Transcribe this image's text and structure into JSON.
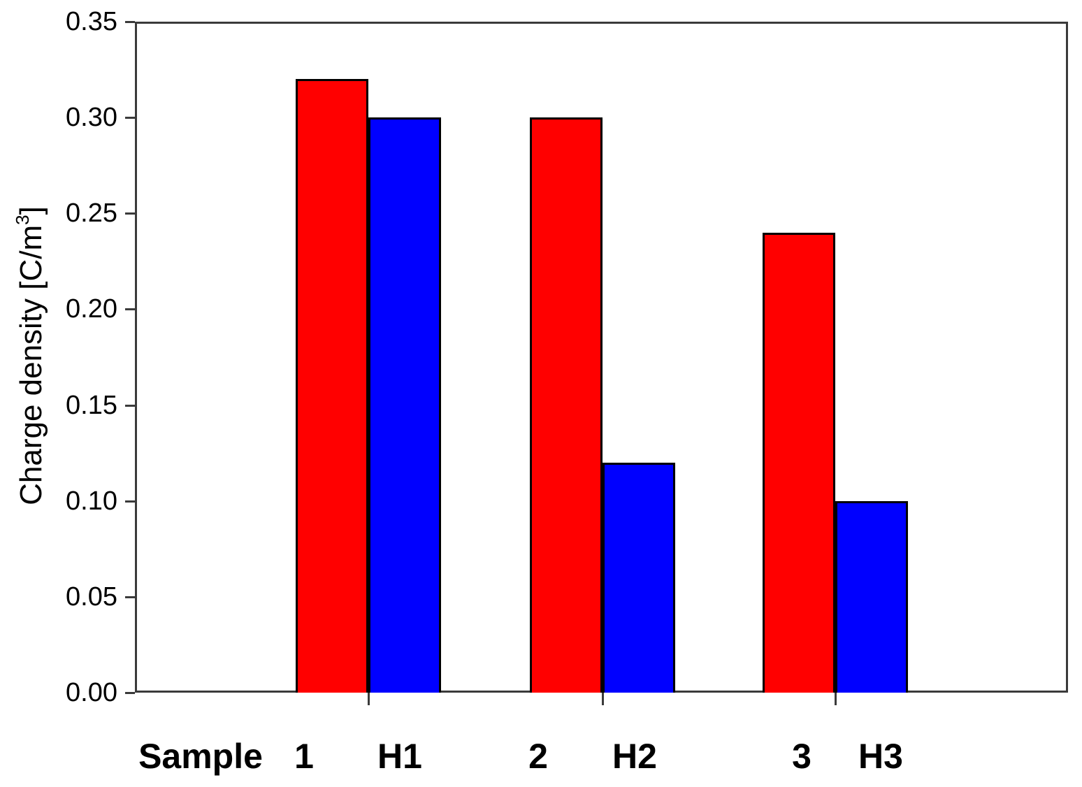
{
  "chart_data": {
    "type": "bar",
    "title": "",
    "ylabel": "Charge density [C/m³]",
    "ylabel_parts": {
      "base": "Charge density [C/m",
      "sup": "3",
      "close": "]"
    },
    "x_prefix_label": "Sample",
    "categories": [
      "1",
      "H1",
      "2",
      "H2",
      "3",
      "H3"
    ],
    "values": [
      0.32,
      0.3,
      0.3,
      0.12,
      0.24,
      0.1
    ],
    "bar_colors": [
      "#ff0000",
      "#0000ff",
      "#ff0000",
      "#0000ff",
      "#ff0000",
      "#0000ff"
    ],
    "bar_border_color": "#000000",
    "axis_color": "#3b3b3b",
    "ylim": [
      0.0,
      0.35
    ],
    "yticks": [
      "0.00",
      "0.05",
      "0.10",
      "0.15",
      "0.20",
      "0.25",
      "0.30",
      "0.35"
    ],
    "grid": false,
    "legend": "none",
    "groups": [
      {
        "pair": [
          "1",
          "H1"
        ],
        "pair_values": [
          0.32,
          0.3
        ]
      },
      {
        "pair": [
          "2",
          "H2"
        ],
        "pair_values": [
          0.3,
          0.12
        ]
      },
      {
        "pair": [
          "3",
          "H3"
        ],
        "pair_values": [
          0.24,
          0.1
        ]
      }
    ]
  }
}
